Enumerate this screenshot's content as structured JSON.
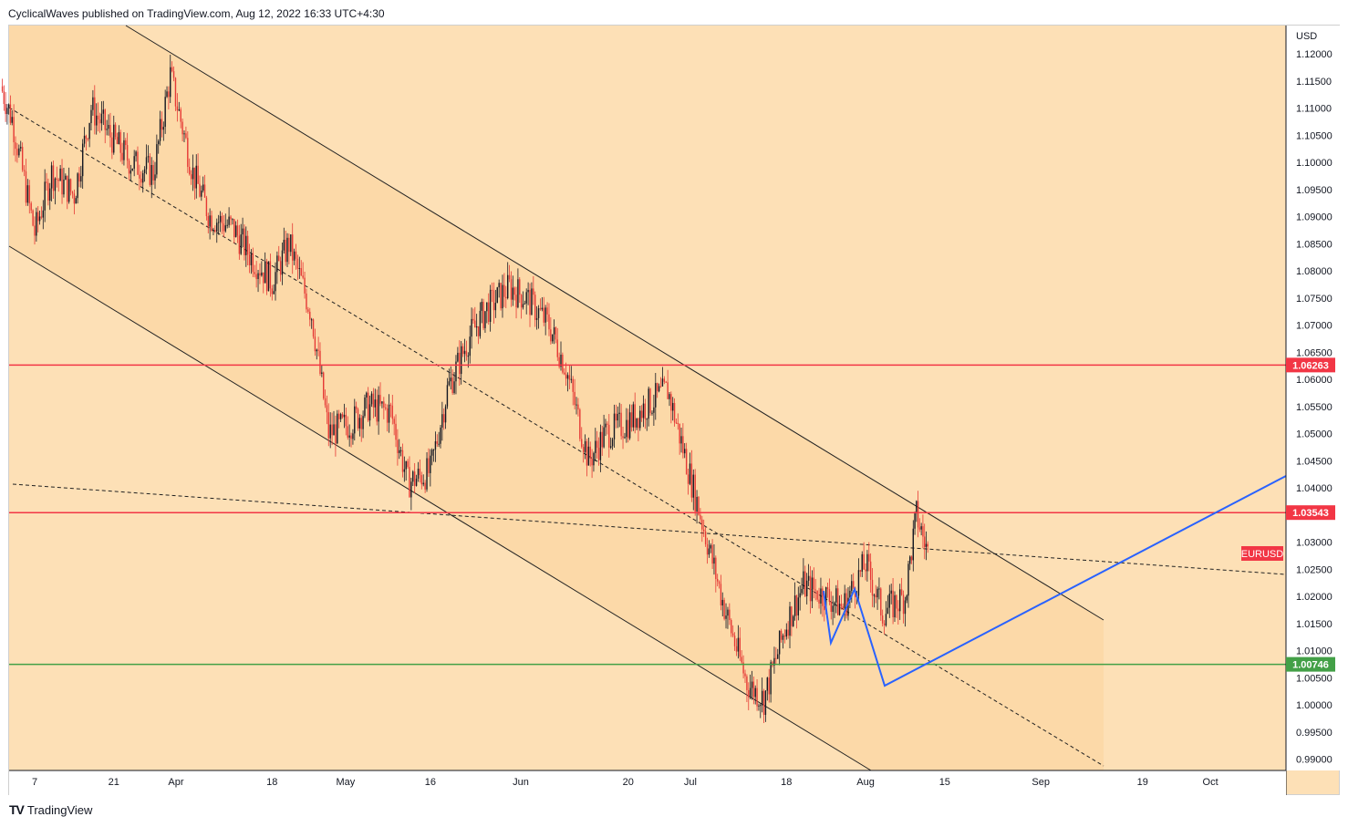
{
  "header": {
    "text": "CyclicalWaves published on TradingView.com, Aug 12, 2022 16:33 UTC+4:30"
  },
  "footer": {
    "logo": "TV",
    "brand": "TradingView"
  },
  "colors": {
    "background": "#fde0b6",
    "channel_fill": "#fcd8a6",
    "candle_up": "#131722",
    "candle_down": "#e53935",
    "red_line": "#f23645",
    "green_line": "#43a047",
    "blue_line": "#2962ff",
    "label_red": "#f23645",
    "label_green": "#43a047"
  },
  "chart_data": {
    "type": "candlestick",
    "symbol": "EURUSD",
    "currency": "USD",
    "x_ticks": [
      "7",
      "21",
      "Apr",
      "18",
      "May",
      "16",
      "Jun",
      "20",
      "Jul",
      "18",
      "Aug",
      "15",
      "Sep",
      "19",
      "Oct"
    ],
    "y_ticks": [
      "1.12000",
      "1.11500",
      "1.11000",
      "1.10500",
      "1.10000",
      "1.09500",
      "1.09000",
      "1.08500",
      "1.08000",
      "1.07500",
      "1.07000",
      "1.06500",
      "1.06000",
      "1.05500",
      "1.05000",
      "1.04500",
      "1.04000",
      "1.03500",
      "1.03000",
      "1.02500",
      "1.02000",
      "1.01500",
      "1.01000",
      "1.00500",
      "1.00000",
      "0.99500",
      "0.99000"
    ],
    "ylim": [
      0.9885,
      1.1215
    ],
    "horizontal_levels": [
      {
        "label": "1.06263",
        "value": 1.06263,
        "kind": "resistance"
      },
      {
        "label": "1.03543",
        "value": 1.03543,
        "kind": "resistance"
      },
      {
        "label": "1.00746",
        "value": 1.00746,
        "kind": "support"
      }
    ],
    "last_price_label": "EURUSD",
    "price_path": [
      {
        "date": "2022-03-01",
        "close": 1.114
      },
      {
        "date": "2022-03-03",
        "close": 1.108
      },
      {
        "date": "2022-03-07",
        "close": 1.087
      },
      {
        "date": "2022-03-10",
        "close": 1.098
      },
      {
        "date": "2022-03-14",
        "close": 1.094
      },
      {
        "date": "2022-03-17",
        "close": 1.11
      },
      {
        "date": "2022-03-21",
        "close": 1.104
      },
      {
        "date": "2022-03-24",
        "close": 1.1
      },
      {
        "date": "2022-03-28",
        "close": 1.098
      },
      {
        "date": "2022-03-31",
        "close": 1.116
      },
      {
        "date": "2022-04-04",
        "close": 1.098
      },
      {
        "date": "2022-04-07",
        "close": 1.09
      },
      {
        "date": "2022-04-11",
        "close": 1.088
      },
      {
        "date": "2022-04-14",
        "close": 1.083
      },
      {
        "date": "2022-04-18",
        "close": 1.078
      },
      {
        "date": "2022-04-21",
        "close": 1.085
      },
      {
        "date": "2022-04-25",
        "close": 1.072
      },
      {
        "date": "2022-04-28",
        "close": 1.05
      },
      {
        "date": "2022-05-02",
        "close": 1.052
      },
      {
        "date": "2022-05-05",
        "close": 1.055
      },
      {
        "date": "2022-05-09",
        "close": 1.054
      },
      {
        "date": "2022-05-12",
        "close": 1.041
      },
      {
        "date": "2022-05-16",
        "close": 1.043
      },
      {
        "date": "2022-05-19",
        "close": 1.058
      },
      {
        "date": "2022-05-23",
        "close": 1.068
      },
      {
        "date": "2022-05-26",
        "close": 1.073
      },
      {
        "date": "2022-05-30",
        "close": 1.077
      },
      {
        "date": "2022-06-02",
        "close": 1.075
      },
      {
        "date": "2022-06-06",
        "close": 1.07
      },
      {
        "date": "2022-06-09",
        "close": 1.062
      },
      {
        "date": "2022-06-13",
        "close": 1.045
      },
      {
        "date": "2022-06-16",
        "close": 1.05
      },
      {
        "date": "2022-06-20",
        "close": 1.052
      },
      {
        "date": "2022-06-23",
        "close": 1.055
      },
      {
        "date": "2022-06-27",
        "close": 1.058
      },
      {
        "date": "2022-06-30",
        "close": 1.046
      },
      {
        "date": "2022-07-04",
        "close": 1.03
      },
      {
        "date": "2022-07-07",
        "close": 1.018
      },
      {
        "date": "2022-07-11",
        "close": 1.004
      },
      {
        "date": "2022-07-14",
        "close": 1.001
      },
      {
        "date": "2022-07-18",
        "close": 1.015
      },
      {
        "date": "2022-07-21",
        "close": 1.022
      },
      {
        "date": "2022-07-25",
        "close": 1.02
      },
      {
        "date": "2022-07-28",
        "close": 1.018
      },
      {
        "date": "2022-08-01",
        "close": 1.026
      },
      {
        "date": "2022-08-04",
        "close": 1.017
      },
      {
        "date": "2022-08-08",
        "close": 1.02
      },
      {
        "date": "2022-08-10",
        "close": 1.035
      },
      {
        "date": "2022-08-12",
        "close": 1.028
      }
    ],
    "grid": false
  }
}
